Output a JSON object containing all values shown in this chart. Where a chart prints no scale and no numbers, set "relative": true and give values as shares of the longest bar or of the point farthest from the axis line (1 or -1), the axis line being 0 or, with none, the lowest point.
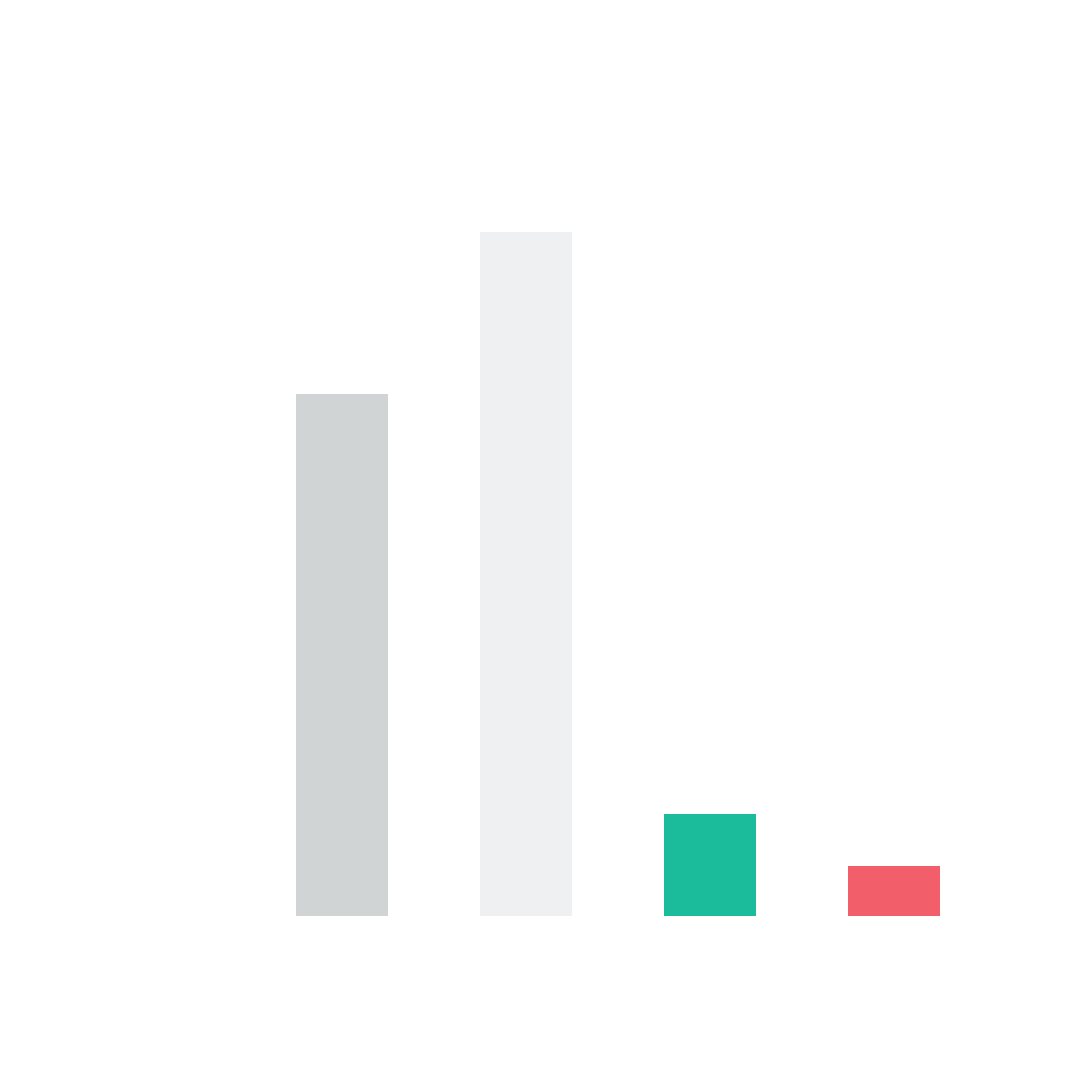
{
  "chart_data": {
    "type": "bar",
    "relative": true,
    "categories": [
      null,
      null,
      null,
      null
    ],
    "values": [
      0.763,
      1,
      0.149,
      0.073
    ],
    "colors": [
      "#d0d4d4",
      "#eff0f2",
      "#1abc9c",
      "#f25f6a"
    ]
  }
}
